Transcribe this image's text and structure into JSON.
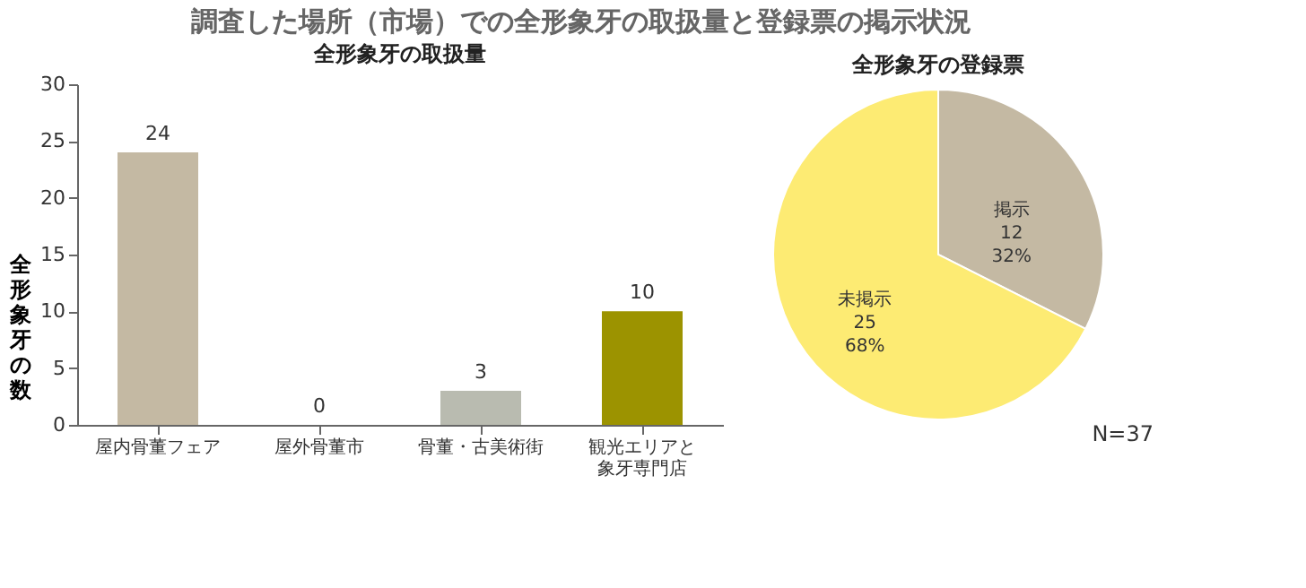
{
  "chart_data": [
    {
      "type": "bar",
      "title": "調査した場所（市場）での全形象牙の取扱量と登録票の掲示状況",
      "subtitle": "全形象牙の取扱量",
      "ylabel": "全形象牙の数",
      "categories": [
        "屋内骨董フェア",
        "屋外骨董市",
        "骨董・古美術街",
        "観光エリアと象牙専門店"
      ],
      "values": [
        24,
        0,
        3,
        10
      ],
      "colors": [
        "#c4b9a3",
        "#c4b9a3",
        "#b9bbb0",
        "#9c9300"
      ],
      "ylim": [
        0,
        30
      ],
      "yticks": [
        0,
        5,
        10,
        15,
        20,
        25,
        30
      ],
      "data_labels": true,
      "grid": false
    },
    {
      "type": "pie",
      "title": "全形象牙の登録票",
      "categories": [
        "掲示",
        "未掲示"
      ],
      "values": [
        12,
        25
      ],
      "colors": [
        "#c4b9a3",
        "#fdeb73"
      ],
      "value_labels": [
        "12\n32%",
        "25\n68%"
      ],
      "annotations": [
        "N=37"
      ]
    }
  ]
}
